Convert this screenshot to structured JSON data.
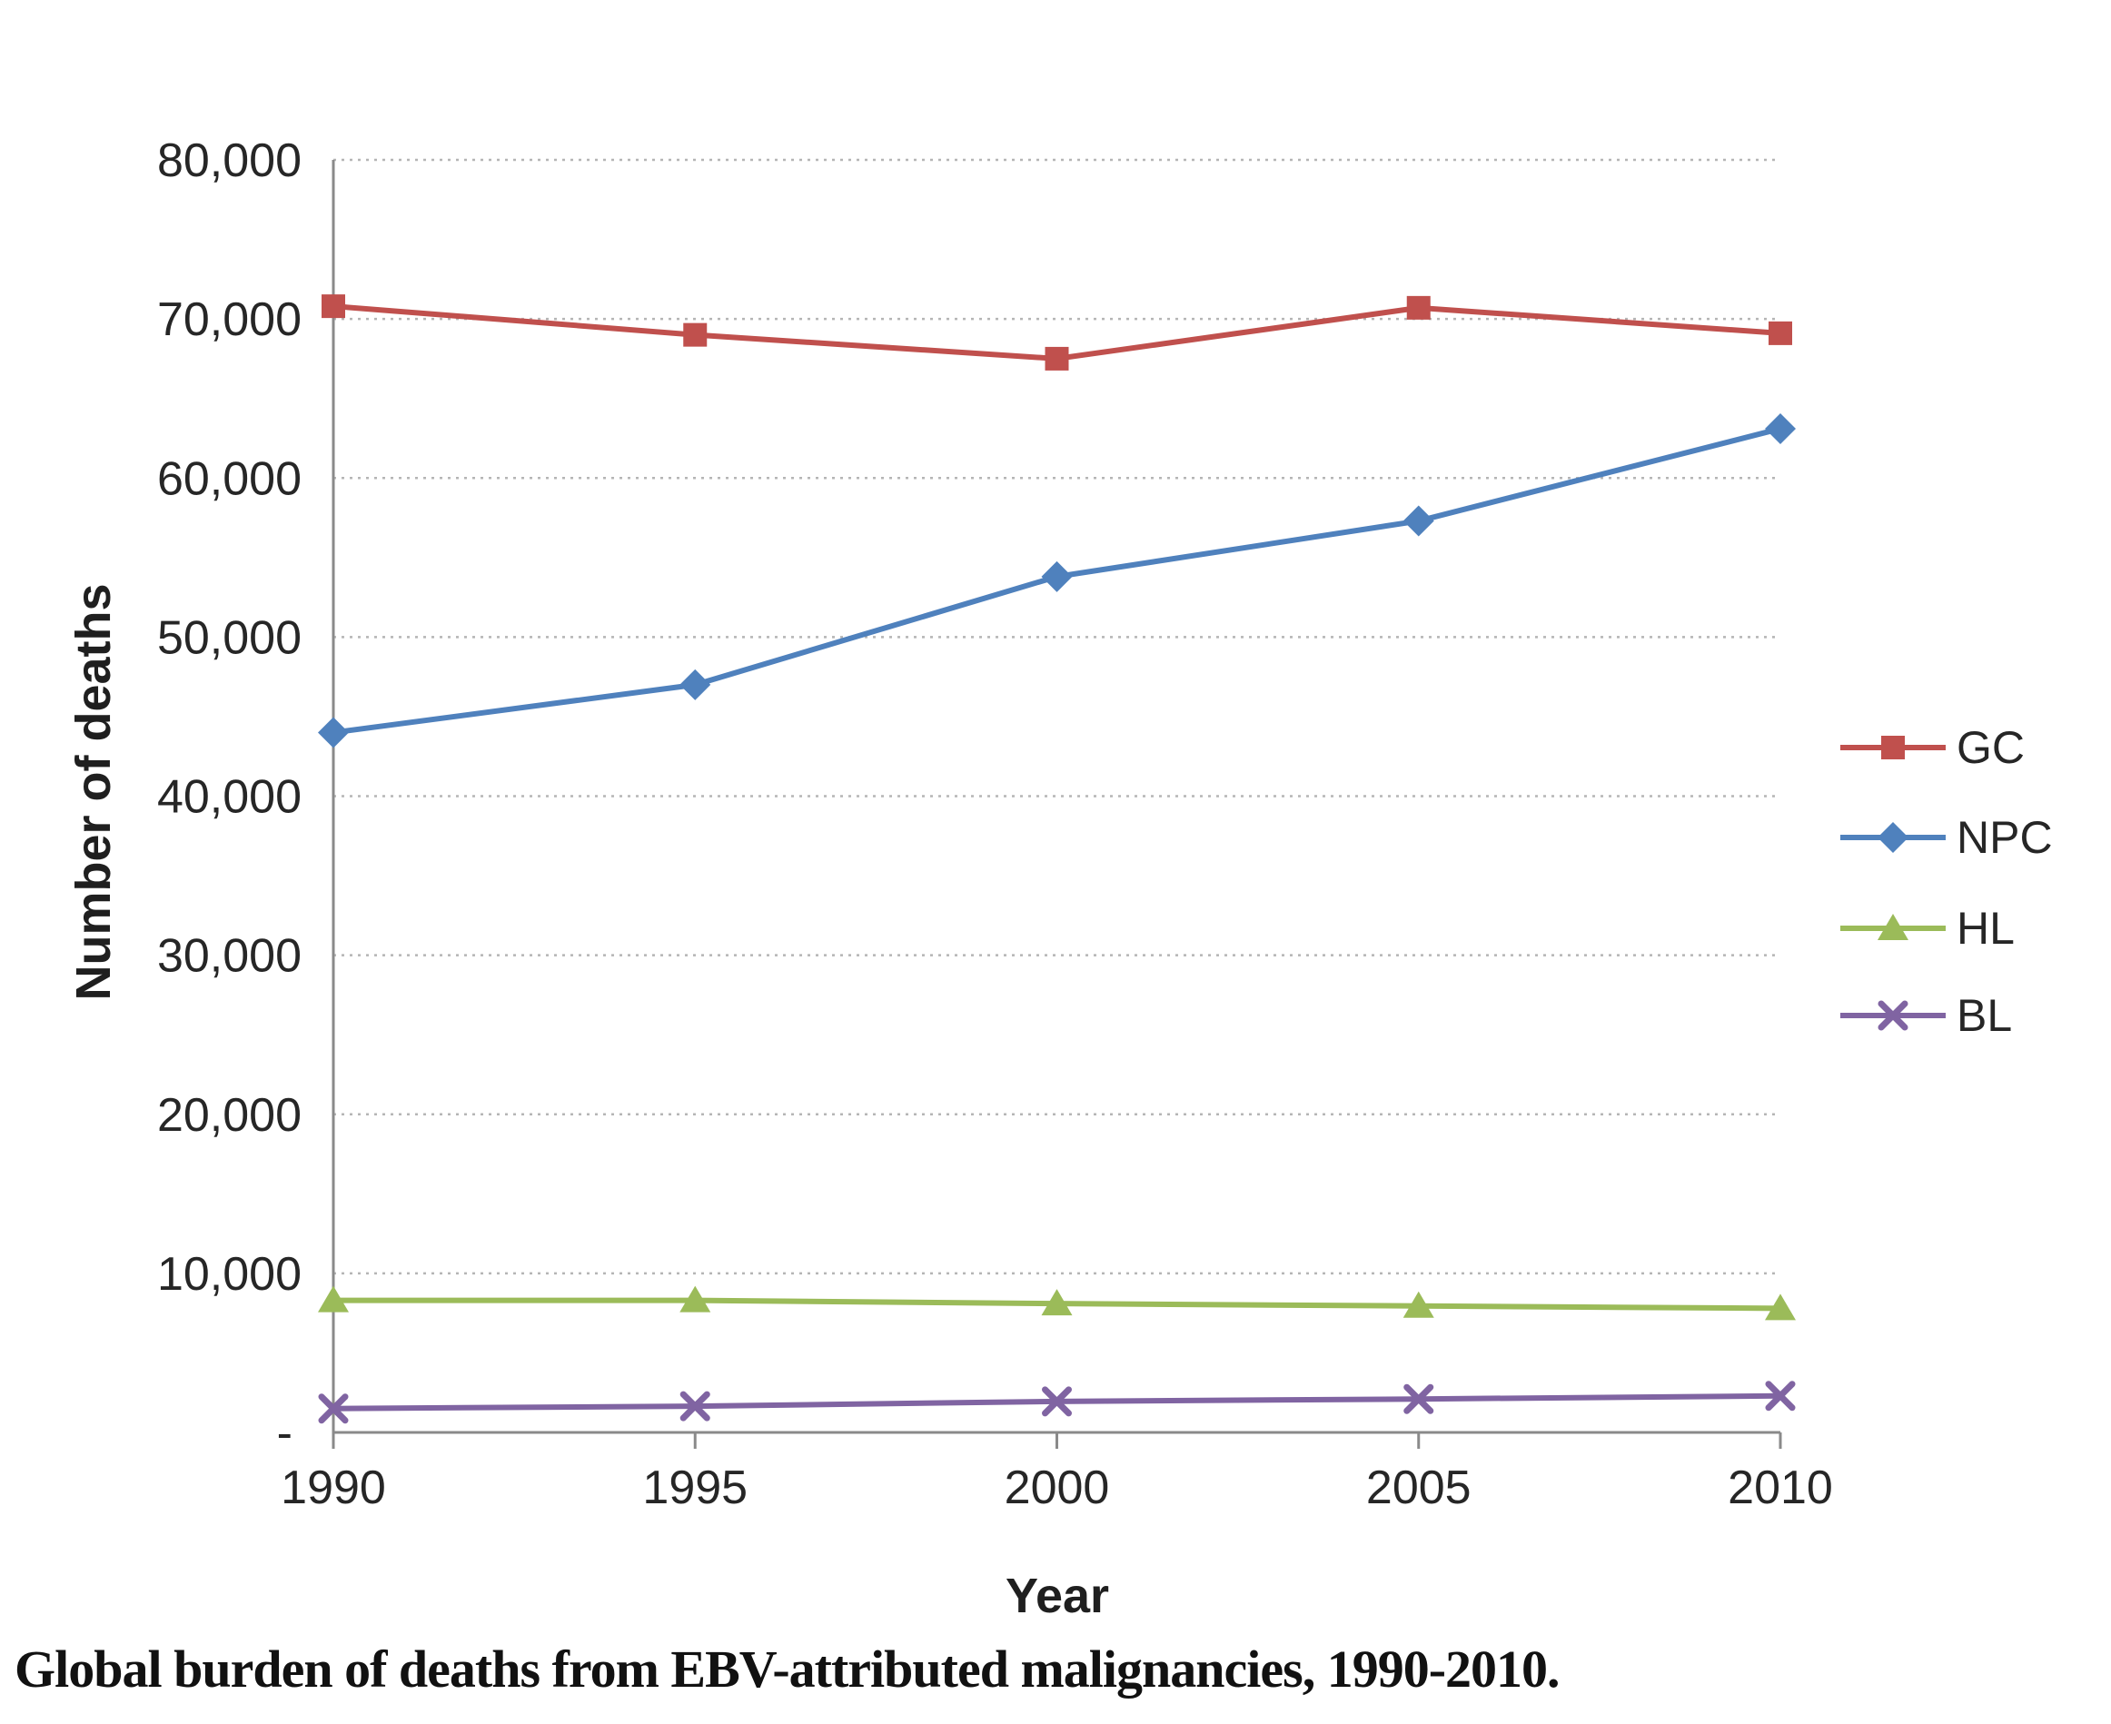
{
  "caption": "Global burden of deaths from EBV-attributed malignancies, 1990-2010.",
  "chart_data": {
    "type": "line",
    "title": "",
    "xlabel": "Year",
    "ylabel": "Number of deaths",
    "categories": [
      "1990",
      "1995",
      "2000",
      "2005",
      "2010"
    ],
    "ylim": [
      0,
      80000
    ],
    "grid": "horizontal-dotted",
    "legend_position": "right",
    "axis_color": "#8a8a8a",
    "gridline_color": "#b5b5b5",
    "text_color": "#262626",
    "y_ticks": [
      {
        "value": 0,
        "label": "-"
      },
      {
        "value": 10000,
        "label": "10,000"
      },
      {
        "value": 20000,
        "label": "20,000"
      },
      {
        "value": 30000,
        "label": "30,000"
      },
      {
        "value": 40000,
        "label": "40,000"
      },
      {
        "value": 50000,
        "label": "50,000"
      },
      {
        "value": 60000,
        "label": "60,000"
      },
      {
        "value": 70000,
        "label": "70,000"
      },
      {
        "value": 80000,
        "label": "80,000"
      }
    ],
    "series": [
      {
        "name": "GC",
        "color": "#C0504D",
        "marker": "square",
        "values": [
          70800,
          69000,
          67500,
          70700,
          69100
        ]
      },
      {
        "name": "NPC",
        "color": "#4F81BD",
        "marker": "diamond",
        "values": [
          44000,
          47000,
          53800,
          57300,
          63100
        ]
      },
      {
        "name": "HL",
        "color": "#9BBB59",
        "marker": "triangle",
        "values": [
          8300,
          8300,
          8100,
          7950,
          7800
        ]
      },
      {
        "name": "BL",
        "color": "#8064A2",
        "marker": "x",
        "values": [
          1500,
          1650,
          1950,
          2100,
          2300
        ]
      }
    ]
  }
}
